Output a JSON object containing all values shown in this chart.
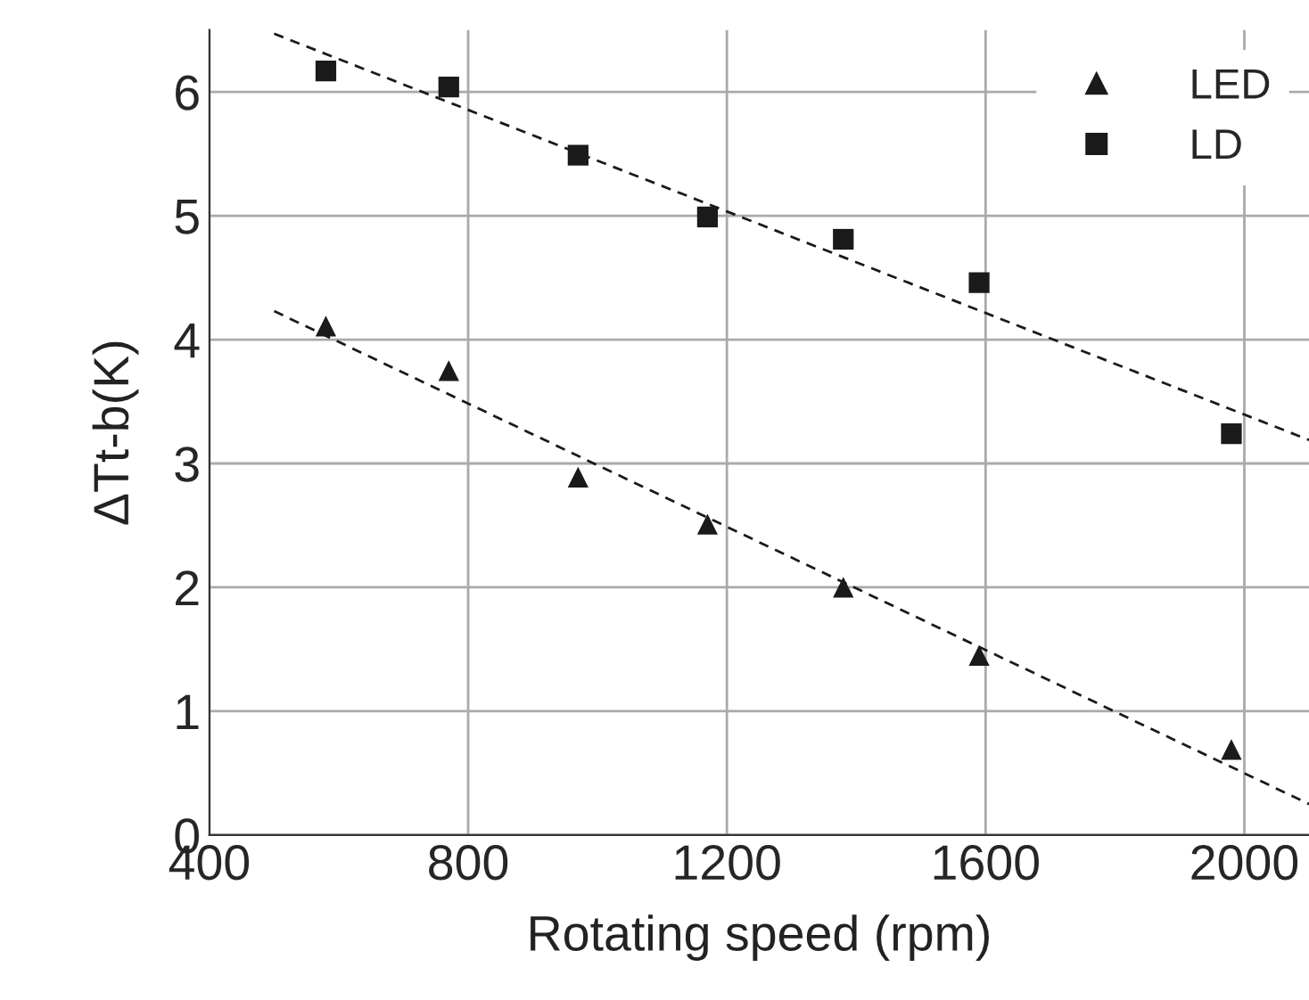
{
  "chart_data": {
    "type": "scatter",
    "xlabel": "Rotating speed (rpm)",
    "ylabel": "ΔTt-b(K)",
    "xlim": [
      400,
      2100
    ],
    "xticks": [
      400,
      800,
      1200,
      1600,
      2000
    ],
    "ylim": [
      0,
      6.5
    ],
    "yticks": [
      0,
      1,
      2,
      3,
      4,
      5,
      6
    ],
    "grid": true,
    "legend": "top right",
    "series": [
      {
        "name": "LED",
        "color": "#1a1a1a",
        "marker": "triangle",
        "x": [
          580,
          770,
          970,
          1170,
          1380,
          1590,
          1980
        ],
        "values": [
          4.11,
          3.75,
          2.89,
          2.51,
          2.0,
          1.45,
          0.69
        ]
      },
      {
        "name": "LD",
        "color": "#1a1a1a",
        "marker": "square",
        "x": [
          580,
          770,
          970,
          1170,
          1380,
          1590,
          1980
        ],
        "values": [
          6.17,
          6.04,
          5.49,
          4.99,
          4.81,
          4.46,
          3.24
        ]
      },
      {
        "type": "line",
        "color": "#1a1a1a",
        "line_style": "dashed",
        "x": [
          500,
          2100
        ],
        "values": [
          4.23,
          0.25
        ]
      },
      {
        "type": "line",
        "color": "#1a1a1a",
        "line_style": "dashed",
        "x": [
          500,
          2100
        ],
        "values": [
          6.47,
          3.19
        ]
      }
    ]
  }
}
